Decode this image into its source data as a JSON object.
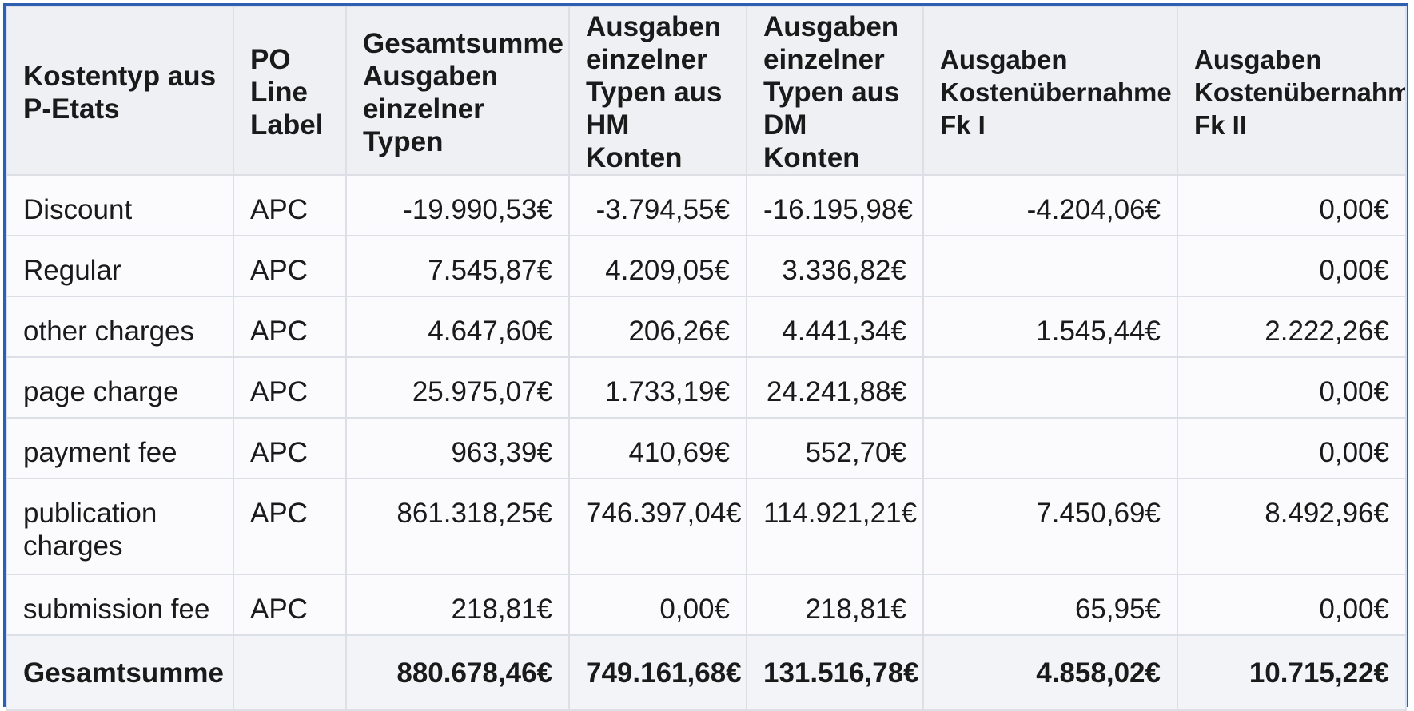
{
  "table": {
    "headers": [
      "Kostentyp aus\nP-Etats",
      "PO\nLine\nLabel",
      "Gesamtsumme\nAusgaben\neinzelner\nTypen",
      "Ausgaben\neinzelner\nTypen aus\nHM Konten",
      "Ausgaben\neinzelner\nTypen aus\nDM Konten",
      "Ausgaben\nKostenübernahme\nFk I",
      "Ausgaben\nKostenübernahme\nFk II"
    ],
    "rows": [
      [
        "Discount",
        "APC",
        "-19.990,53€",
        "-3.794,55€",
        "-16.195,98€",
        "-4.204,06€",
        "0,00€"
      ],
      [
        "Regular",
        "APC",
        "7.545,87€",
        "4.209,05€",
        "3.336,82€",
        "",
        "0,00€"
      ],
      [
        "other charges",
        "APC",
        "4.647,60€",
        "206,26€",
        "4.441,34€",
        "1.545,44€",
        "2.222,26€"
      ],
      [
        "page charge",
        "APC",
        "25.975,07€",
        "1.733,19€",
        "24.241,88€",
        "",
        "0,00€"
      ],
      [
        "payment fee",
        "APC",
        "963,39€",
        "410,69€",
        "552,70€",
        "",
        "0,00€"
      ],
      [
        "publication charges",
        "APC",
        "861.318,25€",
        "746.397,04€",
        "114.921,21€",
        "7.450,69€",
        "8.492,96€"
      ],
      [
        "submission fee",
        "APC",
        "218,81€",
        "0,00€",
        "218,81€",
        "65,95€",
        "0,00€"
      ]
    ],
    "total": [
      "Gesamtsumme",
      "",
      "880.678,46€",
      "749.161,68€",
      "131.516,78€",
      "4.858,02€",
      "10.715,22€"
    ]
  }
}
